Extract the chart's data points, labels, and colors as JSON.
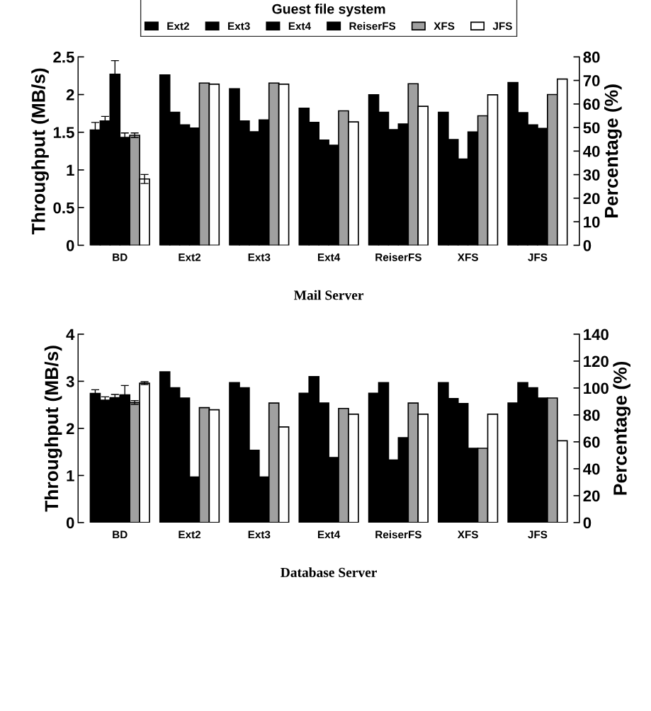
{
  "chart_data": [
    {
      "type": "bar",
      "title": "Mail Server",
      "categories": [
        "BD",
        "Ext2",
        "Ext3",
        "Ext4",
        "ReiserFS",
        "XFS",
        "JFS"
      ],
      "ylabel": "Throughput (MB/s)",
      "y2label": "Percentage (%)",
      "ylim": [
        0,
        2.5
      ],
      "yticks": [
        0,
        0.5,
        1,
        1.5,
        2,
        2.5
      ],
      "y2lim": [
        0,
        80
      ],
      "y2ticks": [
        0,
        10,
        20,
        30,
        40,
        50,
        60,
        70,
        80
      ],
      "grid": false,
      "legend": "top",
      "legend_title": "Guest file system",
      "series": [
        {
          "color": "#000000",
          "values": [
            1.53,
            null,
            null,
            null,
            null,
            null,
            null
          ],
          "errors": [
            0.1,
            null,
            null,
            null,
            null,
            null,
            null
          ]
        },
        {
          "color": "#000000",
          "values": [
            1.65,
            null,
            null,
            null,
            null,
            null,
            null
          ],
          "errors": [
            0.06,
            null,
            null,
            null,
            null,
            null,
            null
          ]
        },
        {
          "color": "#000000",
          "values": [
            2.27,
            null,
            null,
            null,
            null,
            null,
            null
          ],
          "errors": [
            0.18,
            null,
            null,
            null,
            null,
            null,
            null
          ]
        },
        {
          "color": "#000000",
          "values": [
            1.43,
            null,
            null,
            null,
            null,
            null,
            null
          ],
          "errors": [
            0.06,
            null,
            null,
            null,
            null,
            null,
            null
          ]
        },
        {
          "color": "#a0a0a0",
          "values": [
            1.46,
            null,
            null,
            null,
            null,
            null,
            null
          ],
          "errors": [
            0.03,
            null,
            null,
            null,
            null,
            null,
            null
          ]
        },
        {
          "color": "#ffffff",
          "values": [
            0.88,
            null,
            null,
            null,
            null,
            null,
            null
          ],
          "errors": [
            0.06,
            null,
            null,
            null,
            null,
            null,
            null
          ]
        },
        {
          "name": "Ext2",
          "color": "#000000",
          "axis": "y2",
          "values": [
            null,
            72.3,
            66.5,
            58.2,
            63.9,
            56.5,
            69.1
          ]
        },
        {
          "name": "Ext3",
          "color": "#000000",
          "axis": "y2",
          "values": [
            null,
            56.5,
            52.8,
            52.2,
            56.5,
            44.9,
            56.3
          ]
        },
        {
          "name": "Ext4",
          "color": "#000000",
          "axis": "y2",
          "values": [
            null,
            51.1,
            48.2,
            44.7,
            49.1,
            36.6,
            51.1
          ]
        },
        {
          "name": "ReiserFS",
          "color": "#000000",
          "axis": "y2",
          "values": [
            null,
            49.8,
            53.2,
            42.5,
            51.5,
            48.1,
            49.6
          ]
        },
        {
          "name": "XFS",
          "color": "#a0a0a0",
          "axis": "y2",
          "values": [
            null,
            68.9,
            68.9,
            57.1,
            68.6,
            55.0,
            64.0
          ]
        },
        {
          "name": "JFS",
          "color": "#ffffff",
          "axis": "y2",
          "values": [
            null,
            68.4,
            68.4,
            52.4,
            59.0,
            63.9,
            70.6
          ]
        }
      ]
    },
    {
      "type": "bar",
      "title": "Database Server",
      "categories": [
        "BD",
        "Ext2",
        "Ext3",
        "Ext4",
        "ReiserFS",
        "XFS",
        "JFS"
      ],
      "ylabel": "Throughput (MB/s)",
      "y2label": "Percentage (%)",
      "ylim": [
        0,
        4
      ],
      "yticks": [
        0,
        1,
        2,
        3,
        4
      ],
      "y2lim": [
        0,
        140
      ],
      "y2ticks": [
        0,
        20,
        40,
        60,
        80,
        100,
        120,
        140
      ],
      "grid": false,
      "series": [
        {
          "color": "#000000",
          "values": [
            2.74,
            null,
            null,
            null,
            null,
            null,
            null
          ],
          "errors": [
            0.08,
            null,
            null,
            null,
            null,
            null,
            null
          ]
        },
        {
          "color": "#000000",
          "values": [
            2.6,
            null,
            null,
            null,
            null,
            null,
            null
          ],
          "errors": [
            0.07,
            null,
            null,
            null,
            null,
            null,
            null
          ]
        },
        {
          "color": "#000000",
          "values": [
            2.65,
            null,
            null,
            null,
            null,
            null,
            null
          ],
          "errors": [
            0.07,
            null,
            null,
            null,
            null,
            null,
            null
          ]
        },
        {
          "color": "#000000",
          "values": [
            2.71,
            null,
            null,
            null,
            null,
            null,
            null
          ],
          "errors": [
            0.2,
            null,
            null,
            null,
            null,
            null,
            null
          ]
        },
        {
          "color": "#a0a0a0",
          "values": [
            2.55,
            null,
            null,
            null,
            null,
            null,
            null
          ],
          "errors": [
            0.04,
            null,
            null,
            null,
            null,
            null,
            null
          ]
        },
        {
          "color": "#ffffff",
          "values": [
            2.96,
            null,
            null,
            null,
            null,
            null,
            null
          ],
          "errors": [
            0.03,
            null,
            null,
            null,
            null,
            null,
            null
          ]
        },
        {
          "color": "#000000",
          "axis": "y2",
          "values": [
            null,
            112.0,
            104.0,
            96.1,
            96.1,
            104.0,
            88.8
          ]
        },
        {
          "color": "#000000",
          "axis": "y2",
          "values": [
            null,
            100.2,
            100.2,
            108.5,
            104.0,
            92.2,
            104.0
          ]
        },
        {
          "color": "#000000",
          "axis": "y2",
          "values": [
            null,
            92.6,
            53.7,
            88.8,
            46.5,
            88.4,
            100.2
          ]
        },
        {
          "color": "#000000",
          "axis": "y2",
          "values": [
            null,
            33.9,
            33.9,
            48.4,
            63.1,
            55.2,
            92.6
          ]
        },
        {
          "color": "#a0a0a0",
          "axis": "y2",
          "values": [
            null,
            85.4,
            88.8,
            84.8,
            88.8,
            55.2,
            92.6
          ]
        },
        {
          "color": "#ffffff",
          "axis": "y2",
          "values": [
            null,
            83.8,
            71.1,
            80.5,
            80.5,
            80.5,
            60.8
          ]
        }
      ]
    }
  ]
}
